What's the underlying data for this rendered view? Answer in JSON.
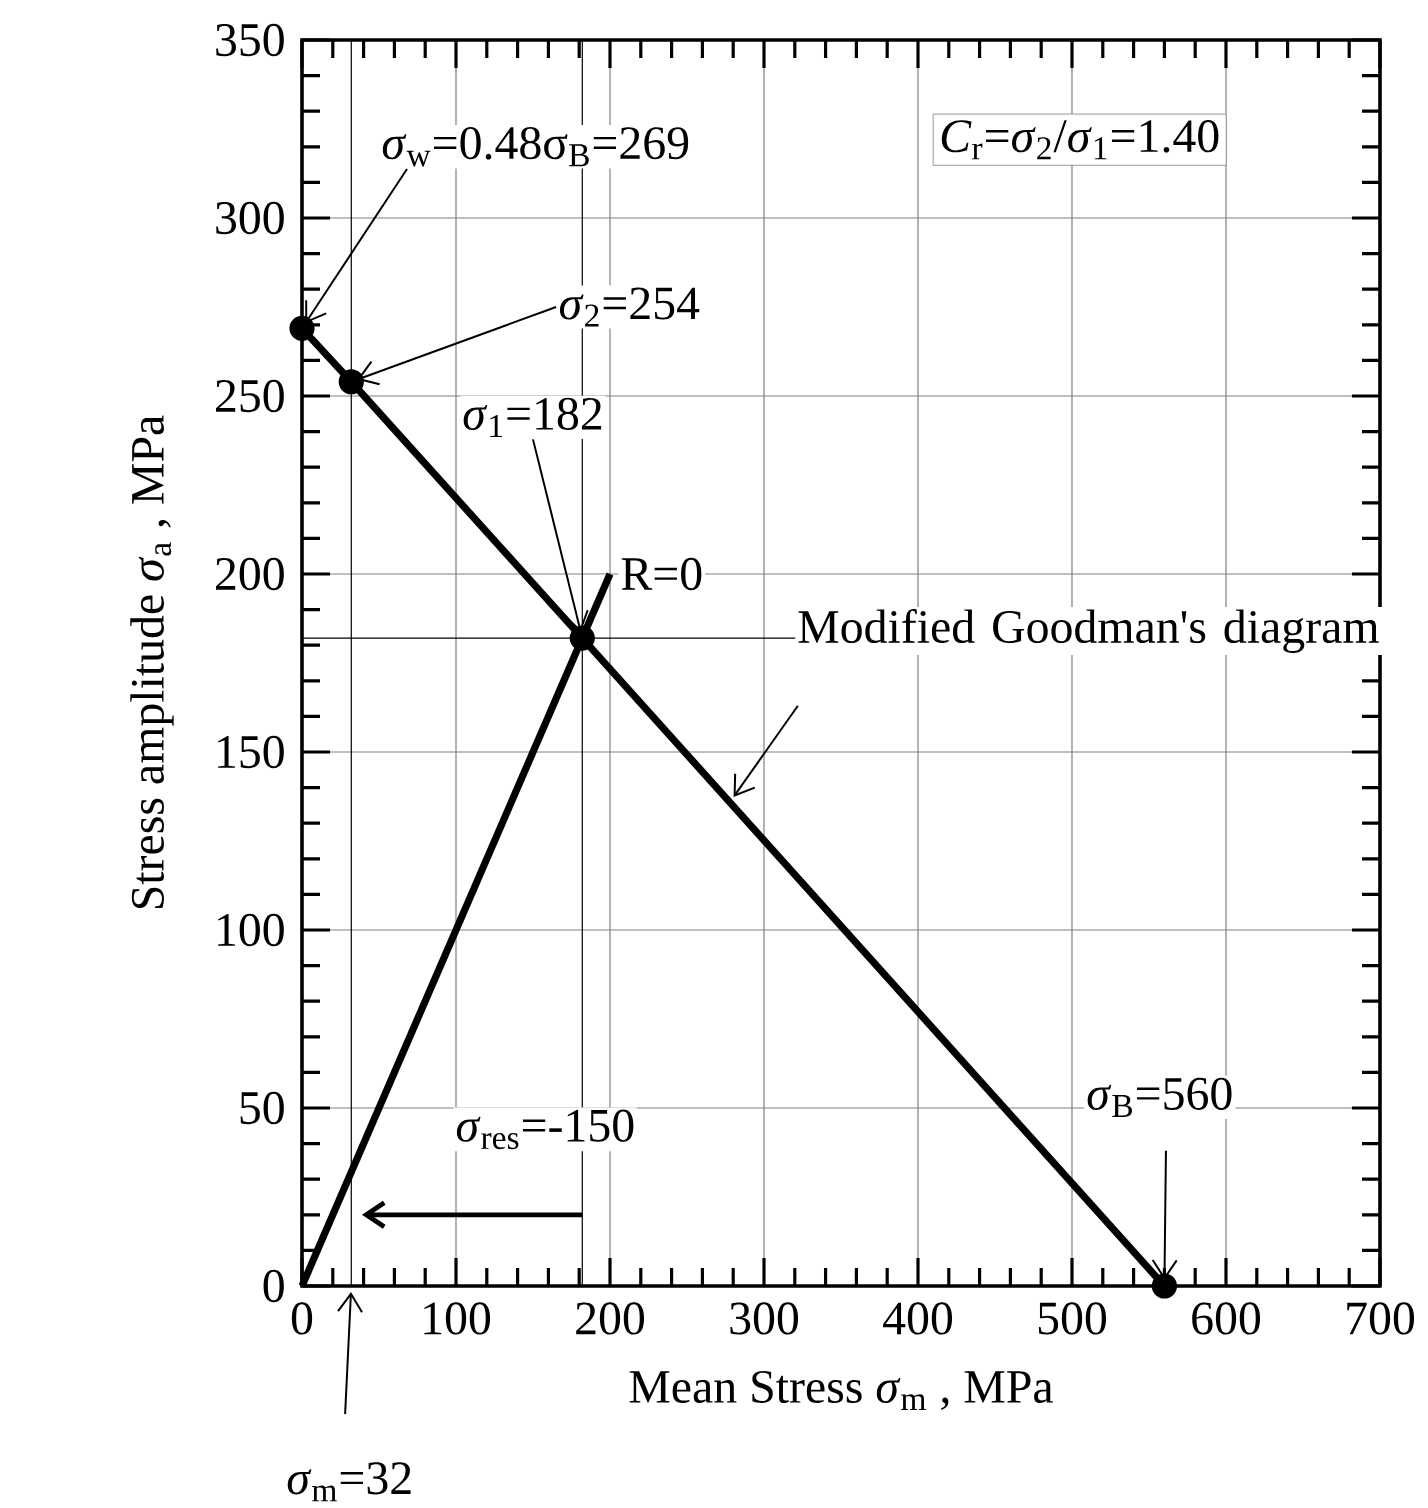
{
  "chart_data": {
    "type": "line",
    "xlabel": "Mean Stress *σ*$_{m}$ , MPa",
    "ylabel": "Stress amplitude *σ*$_{a}$ , MPa",
    "series": [
      {
        "x": [
          0,
          32,
          182,
          560
        ],
        "values": [
          269,
          254,
          182,
          0
        ],
        "color": "#000000",
        "marker": "circle"
      },
      {
        "x": [
          0,
          200
        ],
        "values": [
          0,
          200
        ],
        "color": "#000000",
        "marker": "none"
      }
    ],
    "xlim": [
      0,
      700
    ],
    "ylim": [
      0,
      350
    ],
    "xticks": [
      0,
      100,
      200,
      300,
      400,
      500,
      600,
      700
    ],
    "yticks": [
      0,
      50,
      100,
      150,
      200,
      250,
      300,
      350
    ],
    "grid": true,
    "ref_lines": [
      {
        "axis": "x",
        "value": 32
      },
      {
        "axis": "x",
        "value": 182
      },
      {
        "axis": "y",
        "value": 182
      }
    ],
    "annotations": [
      {
        "text": "*σ*$_{w}$=0.48σ$_{B}$=269",
        "x": 0,
        "y": 269
      },
      {
        "text": "*σ*$_{2}$=254",
        "x": 32,
        "y": 254
      },
      {
        "text": "*σ*$_{1}$=182",
        "x": 182,
        "y": 182
      },
      {
        "text": "R=0",
        "x": 200,
        "y": 200
      },
      {
        "text": "Modified Goodman's diagram",
        "x": 278,
        "y": 136
      },
      {
        "text": "*σ*$_{B}$=560",
        "x": 560,
        "y": 0
      },
      {
        "text": "*σ*$_{m}$=32",
        "x": 32,
        "y": 0
      },
      {
        "text": "*σ*$_{res}$=-150",
        "x": 35,
        "y": 20
      },
      "*C*$_{r}$=*σ*$_{2}$/*σ*$_{1}$=1.40"
    ]
  }
}
